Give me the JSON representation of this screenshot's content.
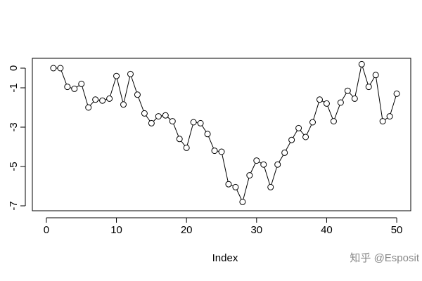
{
  "chart_data": {
    "type": "line",
    "x_label": "Index",
    "watermark": "知乎 @Esposit",
    "color": "#000000",
    "x": [
      1,
      2,
      3,
      4,
      5,
      6,
      7,
      8,
      9,
      10,
      11,
      12,
      13,
      14,
      15,
      16,
      17,
      18,
      19,
      20,
      21,
      22,
      23,
      24,
      25,
      26,
      27,
      28,
      29,
      30,
      31,
      32,
      33,
      34,
      35,
      36,
      37,
      38,
      39,
      40,
      41,
      42,
      43,
      44,
      45,
      46,
      47,
      48,
      49,
      50
    ],
    "values": [
      0,
      0,
      -0.95,
      -1.05,
      -0.8,
      -2.0,
      -1.6,
      -1.65,
      -1.55,
      -0.4,
      -1.85,
      -0.3,
      -1.35,
      -2.3,
      -2.8,
      -2.45,
      -2.4,
      -2.7,
      -3.6,
      -4.05,
      -2.75,
      -2.8,
      -3.35,
      -4.2,
      -4.25,
      -5.9,
      -6.05,
      -6.8,
      -5.45,
      -4.7,
      -4.9,
      -6.05,
      -4.9,
      -4.3,
      -3.65,
      -3.05,
      -3.5,
      -2.75,
      -1.6,
      -1.8,
      -2.7,
      -1.75,
      -1.15,
      -1.55,
      0.2,
      -0.95,
      -0.35,
      -2.7,
      -2.45,
      -1.3
    ],
    "xlim": [
      -2,
      52
    ],
    "ylim": [
      -7.25,
      0.5
    ],
    "xticks": [
      0,
      10,
      20,
      30,
      40,
      50
    ],
    "yticks": [
      0,
      -1,
      -3,
      -5,
      -7
    ]
  }
}
